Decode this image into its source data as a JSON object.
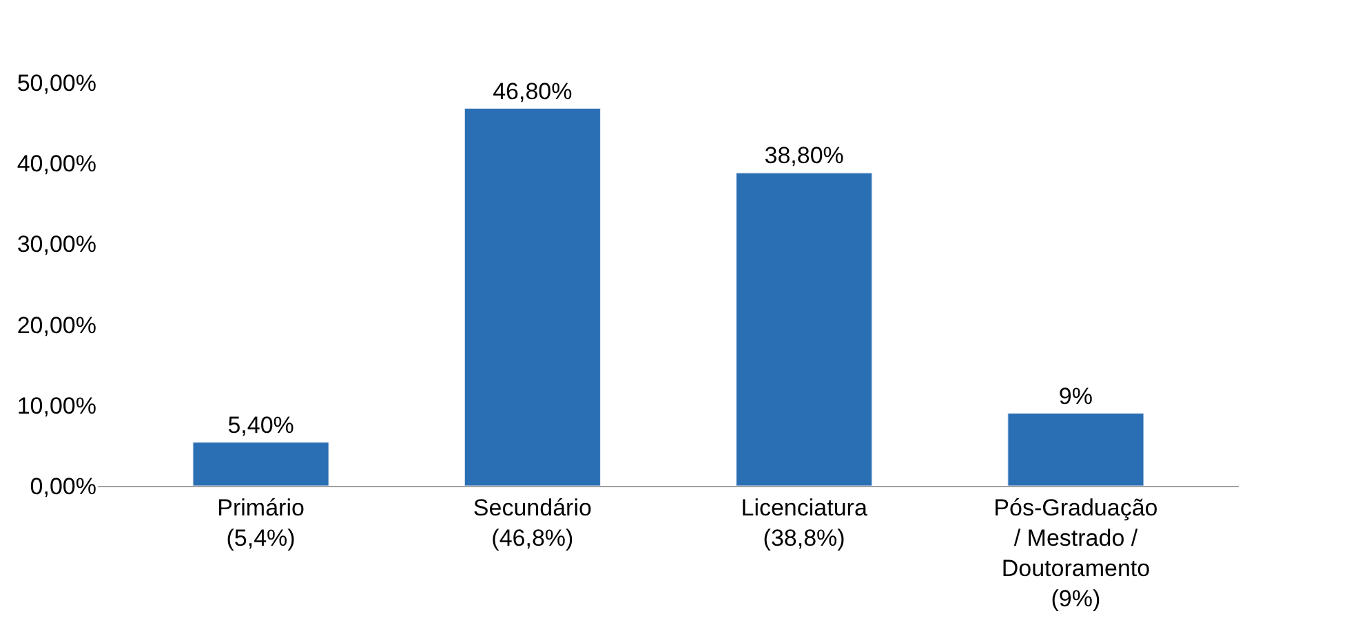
{
  "chart_data": {
    "type": "bar",
    "categories": [
      "Primário (5,4%)",
      "Secundário (46,8%)",
      "Licenciatura (38,8%)",
      "Pós-Graduação / Mestrado / Doutoramento (9%)"
    ],
    "values": [
      5.4,
      46.8,
      38.8,
      9
    ],
    "value_labels": [
      "5,40%",
      "46,80%",
      "38,80%",
      "9%"
    ],
    "color": "#2a6fb4",
    "ylim": [
      0,
      50
    ],
    "yticks": [
      {
        "value": 0,
        "label": "0,00%"
      },
      {
        "value": 10,
        "label": "10,00%"
      },
      {
        "value": 20,
        "label": "20,00%"
      },
      {
        "value": 30,
        "label": "30,00%"
      },
      {
        "value": 40,
        "label": "40,00%"
      },
      {
        "value": 50,
        "label": "50,00%"
      }
    ],
    "legend": false
  }
}
